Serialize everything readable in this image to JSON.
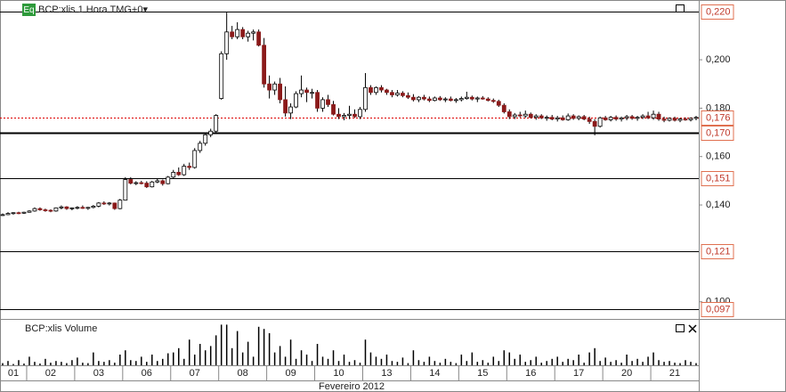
{
  "chart_data": {
    "type": "candlestick",
    "title": "BCP:xlis 1 Hora TMG+0▾",
    "badge": "Eq",
    "volume_title": "BCP:xlis Volume",
    "x_axis_label": "Fevereiro 2012",
    "categories": [
      "01",
      null,
      null,
      null,
      null,
      "02",
      null,
      null,
      null,
      null,
      null,
      null,
      null,
      null,
      "03",
      null,
      null,
      null,
      null,
      null,
      null,
      null,
      null,
      "06",
      null,
      null,
      null,
      null,
      null,
      null,
      null,
      null,
      "07",
      null,
      null,
      null,
      null,
      null,
      null,
      null,
      null,
      "08",
      null,
      null,
      null,
      null,
      null,
      null,
      null,
      null,
      "09",
      null,
      null,
      null,
      null,
      null,
      null,
      null,
      null,
      "10",
      null,
      null,
      null,
      null,
      null,
      null,
      null,
      null,
      "13",
      null,
      null,
      null,
      null,
      null,
      null,
      null,
      null,
      "14",
      null,
      null,
      null,
      null,
      null,
      null,
      null,
      null,
      "15",
      null,
      null,
      null,
      null,
      null,
      null,
      null,
      null,
      "16",
      null,
      null,
      null,
      null,
      null,
      null,
      null,
      null,
      "17",
      null,
      null,
      null,
      null,
      null,
      null,
      null,
      null,
      "20",
      null,
      null,
      null,
      null,
      null,
      null,
      null,
      null,
      "21",
      null,
      null,
      null,
      null,
      null,
      null,
      null,
      null
    ],
    "open": [
      0.136,
      0.136,
      0.1365,
      0.1368,
      0.1366,
      0.137,
      0.1375,
      0.1385,
      0.138,
      0.1378,
      0.1375,
      0.1388,
      0.1392,
      0.1385,
      0.1388,
      0.139,
      0.1386,
      0.139,
      0.1395,
      0.1408,
      0.1405,
      0.1408,
      0.1385,
      0.142,
      0.1505,
      0.149,
      0.1492,
      0.149,
      0.1475,
      0.1495,
      0.15,
      0.1488,
      0.1515,
      0.1535,
      0.1525,
      0.156,
      0.1555,
      0.1625,
      0.1655,
      0.169,
      0.1705,
      0.184,
      0.2025,
      0.2115,
      0.2095,
      0.2125,
      0.2095,
      0.211,
      0.2115,
      0.206,
      0.19,
      0.1875,
      0.19,
      0.1835,
      0.178,
      0.1805,
      0.186,
      0.1875,
      0.1865,
      0.1865,
      0.18,
      0.1835,
      0.1815,
      0.1775,
      0.1765,
      0.177,
      0.1775,
      0.1765,
      0.1795,
      0.1885,
      0.1865,
      0.1885,
      0.1875,
      0.1865,
      0.1855,
      0.1862,
      0.1852,
      0.1845,
      0.1835,
      0.1845,
      0.1838,
      0.1832,
      0.1842,
      0.1835,
      0.1838,
      0.1832,
      0.1835,
      0.184,
      0.1845,
      0.1838,
      0.1842,
      0.1838,
      0.1832,
      0.1828,
      0.1812,
      0.1785,
      0.1765,
      0.1772,
      0.1768,
      0.1775,
      0.1762,
      0.1768,
      0.176,
      0.1762,
      0.1755,
      0.176,
      0.1752,
      0.1768,
      0.1758,
      0.1765,
      0.1755,
      0.1745,
      0.1725,
      0.176,
      0.1752,
      0.1762,
      0.1755,
      0.176,
      0.1765,
      0.1758,
      0.1762,
      0.1768,
      0.176,
      0.1775,
      0.1755,
      0.175,
      0.1758,
      0.175,
      0.1755,
      0.1752,
      0.1758
    ],
    "high": [
      0.1365,
      0.137,
      0.137,
      0.1372,
      0.1372,
      0.1378,
      0.139,
      0.139,
      0.1385,
      0.1382,
      0.139,
      0.1398,
      0.1395,
      0.139,
      0.1395,
      0.1398,
      0.1392,
      0.14,
      0.1412,
      0.1415,
      0.1412,
      0.141,
      0.1425,
      0.1515,
      0.1515,
      0.1498,
      0.15,
      0.1498,
      0.15,
      0.151,
      0.1505,
      0.152,
      0.1545,
      0.1555,
      0.157,
      0.1575,
      0.1635,
      0.1665,
      0.1695,
      0.1715,
      0.1775,
      0.2035,
      0.2195,
      0.214,
      0.2155,
      0.2135,
      0.212,
      0.2125,
      0.2125,
      0.209,
      0.1935,
      0.191,
      0.1925,
      0.189,
      0.182,
      0.187,
      0.1935,
      0.1885,
      0.188,
      0.1875,
      0.1845,
      0.1855,
      0.183,
      0.18,
      0.178,
      0.181,
      0.1795,
      0.1805,
      0.1945,
      0.1895,
      0.189,
      0.1895,
      0.188,
      0.1875,
      0.1875,
      0.187,
      0.1865,
      0.1858,
      0.185,
      0.1855,
      0.1848,
      0.1848,
      0.185,
      0.1845,
      0.1848,
      0.1842,
      0.1848,
      0.1868,
      0.1852,
      0.1848,
      0.185,
      0.1845,
      0.184,
      0.1835,
      0.182,
      0.1795,
      0.178,
      0.1785,
      0.179,
      0.1782,
      0.1775,
      0.1775,
      0.177,
      0.1772,
      0.1768,
      0.177,
      0.1778,
      0.1775,
      0.177,
      0.1772,
      0.1765,
      0.1755,
      0.1765,
      0.1768,
      0.1768,
      0.177,
      0.1765,
      0.1772,
      0.1772,
      0.1768,
      0.1775,
      0.1785,
      0.179,
      0.1785,
      0.1765,
      0.1762,
      0.1765,
      0.176,
      0.1762,
      0.1762,
      0.1768
    ],
    "low": [
      0.1355,
      0.1358,
      0.136,
      0.1362,
      0.1363,
      0.1368,
      0.1372,
      0.1376,
      0.1372,
      0.137,
      0.1372,
      0.1382,
      0.138,
      0.1378,
      0.1382,
      0.1384,
      0.138,
      0.1386,
      0.139,
      0.14,
      0.1398,
      0.138,
      0.1382,
      0.1418,
      0.1485,
      0.1482,
      0.1485,
      0.147,
      0.1472,
      0.149,
      0.148,
      0.1485,
      0.151,
      0.152,
      0.152,
      0.1545,
      0.155,
      0.1615,
      0.1645,
      0.168,
      0.17,
      0.1835,
      0.2,
      0.2085,
      0.2085,
      0.2085,
      0.2075,
      0.208,
      0.2055,
      0.1885,
      0.184,
      0.1855,
      0.182,
      0.1765,
      0.1755,
      0.18,
      0.1845,
      0.1825,
      0.184,
      0.1785,
      0.1785,
      0.1805,
      0.177,
      0.1755,
      0.175,
      0.1755,
      0.176,
      0.1755,
      0.1785,
      0.1855,
      0.1855,
      0.1865,
      0.1855,
      0.1845,
      0.1848,
      0.1845,
      0.1838,
      0.1828,
      0.1825,
      0.1832,
      0.1825,
      0.1828,
      0.183,
      0.1825,
      0.1828,
      0.1822,
      0.1828,
      0.1835,
      0.1832,
      0.1825,
      0.1835,
      0.1828,
      0.1822,
      0.1805,
      0.1778,
      0.1755,
      0.1755,
      0.1762,
      0.176,
      0.1758,
      0.1752,
      0.1755,
      0.1748,
      0.175,
      0.1745,
      0.1748,
      0.1748,
      0.1752,
      0.175,
      0.175,
      0.1735,
      0.1688,
      0.172,
      0.1748,
      0.1745,
      0.1748,
      0.1745,
      0.175,
      0.1752,
      0.1748,
      0.1755,
      0.1755,
      0.1752,
      0.1748,
      0.1742,
      0.1745,
      0.1745,
      0.1742,
      0.1748,
      0.1745,
      0.175
    ],
    "close": [
      0.136,
      0.1365,
      0.1368,
      0.1366,
      0.137,
      0.1375,
      0.1385,
      0.138,
      0.1378,
      0.1375,
      0.1388,
      0.1392,
      0.1385,
      0.1388,
      0.139,
      0.1386,
      0.139,
      0.1395,
      0.1408,
      0.1405,
      0.1408,
      0.1385,
      0.142,
      0.1505,
      0.149,
      0.1492,
      0.149,
      0.1475,
      0.1495,
      0.15,
      0.1488,
      0.1515,
      0.1535,
      0.1525,
      0.156,
      0.1555,
      0.1625,
      0.1655,
      0.169,
      0.1705,
      0.177,
      0.2025,
      0.2115,
      0.2095,
      0.2125,
      0.2095,
      0.211,
      0.2115,
      0.206,
      0.19,
      0.1875,
      0.19,
      0.1835,
      0.178,
      0.1805,
      0.186,
      0.1875,
      0.1865,
      0.1865,
      0.18,
      0.1835,
      0.1815,
      0.1775,
      0.1765,
      0.177,
      0.1775,
      0.1765,
      0.1795,
      0.1885,
      0.1865,
      0.1885,
      0.1875,
      0.1865,
      0.1855,
      0.1862,
      0.1852,
      0.1845,
      0.1835,
      0.1845,
      0.1838,
      0.1832,
      0.1842,
      0.1835,
      0.1838,
      0.1832,
      0.1835,
      0.184,
      0.1845,
      0.1838,
      0.1842,
      0.1838,
      0.1832,
      0.1828,
      0.1812,
      0.1785,
      0.1765,
      0.1772,
      0.1768,
      0.1775,
      0.1762,
      0.1768,
      0.176,
      0.1762,
      0.1755,
      0.176,
      0.1752,
      0.1768,
      0.1758,
      0.1765,
      0.1755,
      0.1745,
      0.1725,
      0.176,
      0.1752,
      0.1762,
      0.1755,
      0.176,
      0.1765,
      0.1758,
      0.1762,
      0.1768,
      0.176,
      0.1775,
      0.1755,
      0.175,
      0.1758,
      0.175,
      0.1755,
      0.1752,
      0.1758,
      0.1762
    ],
    "volume": [
      5,
      10,
      3,
      12,
      4,
      20,
      8,
      4,
      15,
      6,
      10,
      8,
      5,
      12,
      18,
      6,
      5,
      30,
      10,
      8,
      12,
      6,
      25,
      35,
      12,
      10,
      20,
      8,
      25,
      10,
      15,
      28,
      30,
      40,
      15,
      60,
      25,
      50,
      35,
      45,
      70,
      95,
      95,
      40,
      80,
      30,
      55,
      20,
      90,
      85,
      75,
      30,
      45,
      20,
      60,
      15,
      35,
      25,
      10,
      50,
      20,
      15,
      35,
      10,
      25,
      8,
      12,
      6,
      60,
      30,
      20,
      15,
      25,
      10,
      8,
      18,
      5,
      35,
      12,
      8,
      20,
      10,
      6,
      15,
      8,
      5,
      25,
      10,
      30,
      8,
      12,
      6,
      20,
      10,
      35,
      30,
      15,
      25,
      8,
      12,
      20,
      6,
      10,
      15,
      20,
      8,
      15,
      12,
      25,
      6,
      30,
      40,
      10,
      18,
      8,
      12,
      6,
      25,
      10,
      15,
      8,
      20,
      30,
      12,
      8,
      10,
      6,
      5,
      12,
      8,
      5
    ],
    "up_color": "#ffffff",
    "down_color": "#8b1a1a",
    "volume_color": "#000000",
    "ylim": [
      0.0929,
      0.2247
    ],
    "volume_lim": [
      0,
      100
    ],
    "yticks": [
      {
        "value": 0.2,
        "label": "0,200"
      },
      {
        "value": 0.18,
        "label": "0,180"
      },
      {
        "value": 0.16,
        "label": "0,160"
      },
      {
        "value": 0.14,
        "label": "0,140"
      },
      {
        "value": 0.1,
        "label": "0,100"
      }
    ],
    "levels": [
      {
        "value": 0.22,
        "label": "0,220",
        "style": "solid"
      },
      {
        "value": 0.176,
        "label": "0,176",
        "style": "dotted"
      },
      {
        "value": 0.17,
        "label": "0,170",
        "style": "thick"
      },
      {
        "value": 0.151,
        "label": "0,151",
        "style": "solid"
      },
      {
        "value": 0.121,
        "label": "0,121",
        "style": "solid"
      },
      {
        "value": 0.097,
        "label": "0,097",
        "style": "solid"
      }
    ]
  }
}
